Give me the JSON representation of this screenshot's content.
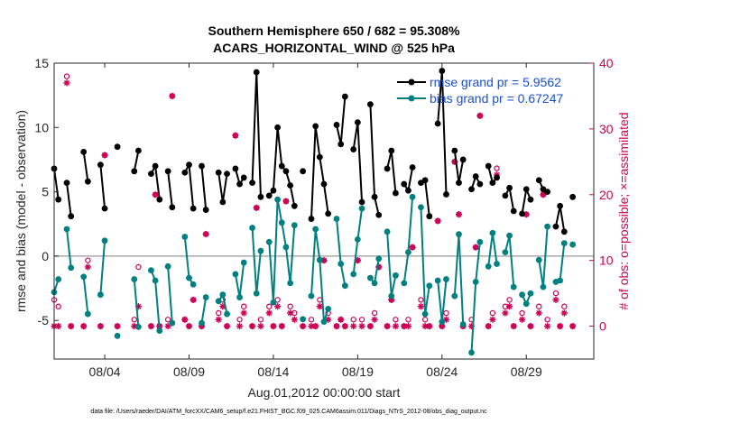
{
  "chart_data": {
    "type": "line",
    "title": "Southern Hemisphere 650 / 682 = 95.308%",
    "subtitle": "ACARS_HORIZONTAL_WIND @ 525 hPa",
    "xlabel": "Aug.01,2012 00:00:00 start",
    "ylabel_left": "rmse and bias (model - observation)",
    "ylabel_right": "# of obs: o=possible; ×=assimilated",
    "xlim": [
      1.0,
      33.0
    ],
    "ylim_left": [
      -8,
      15
    ],
    "ylim_right": [
      -5,
      40
    ],
    "x_ticks": [
      {
        "x": 4,
        "label": "08/04"
      },
      {
        "x": 9,
        "label": "08/09"
      },
      {
        "x": 14,
        "label": "08/14"
      },
      {
        "x": 19,
        "label": "08/19"
      },
      {
        "x": 24,
        "label": "08/24"
      },
      {
        "x": 29,
        "label": "08/29"
      }
    ],
    "yticks_left": [
      -5,
      0,
      5,
      10,
      15
    ],
    "yticks_right": [
      0,
      10,
      20,
      30,
      40
    ],
    "grid": false,
    "legend_position": "top-right",
    "colors": {
      "rmse": "#000000",
      "bias": "#008080",
      "obs": "#cc0055",
      "zero": "#aaaaaa"
    },
    "series": [
      {
        "name": "rmse grand pr = 5.9562",
        "axis": "left",
        "x": [
          1.0,
          1.25,
          1.75,
          2.0,
          2.75,
          3.0,
          3.75,
          4.0,
          4.75,
          5.75,
          6.0,
          6.75,
          7.0,
          7.25,
          7.75,
          8.0,
          8.75,
          9.0,
          9.25,
          9.75,
          10.0,
          10.75,
          11.0,
          11.25,
          11.75,
          12.0,
          12.25,
          12.75,
          13.0,
          13.25,
          13.75,
          14.0,
          14.25,
          14.5,
          14.75,
          15.0,
          15.25,
          15.75,
          16.25,
          16.5,
          16.75,
          17.0,
          17.25,
          17.75,
          18.0,
          18.25,
          18.75,
          19.0,
          19.25,
          19.75,
          20.0,
          20.25,
          20.75,
          21.0,
          21.25,
          21.75,
          22.0,
          22.25,
          22.75,
          23.0,
          23.25,
          23.75,
          24.0,
          24.25,
          24.75,
          25.0,
          25.25,
          25.75,
          26.0,
          26.25,
          26.75,
          27.0,
          27.25,
          27.75,
          28.0,
          28.25,
          28.75,
          29.0,
          29.25,
          29.75,
          30.0,
          30.25,
          30.75,
          31.0,
          31.25,
          31.75
        ],
        "y": [
          6.8,
          4.4,
          5.7,
          3.1,
          8.1,
          5.8,
          7.1,
          3.7,
          8.5,
          6.6,
          8.2,
          6.4,
          7.0,
          4.4,
          6.6,
          3.8,
          6.5,
          7.1,
          3.7,
          7.0,
          3.6,
          6.5,
          4.2,
          6.4,
          6.8,
          5.6,
          6.1,
          5.7,
          14.3,
          4.6,
          4.7,
          5.1,
          10.0,
          7.0,
          6.6,
          5.5,
          3.9,
          6.6,
          2.9,
          10.1,
          7.7,
          5.6,
          3.3,
          10.2,
          8.7,
          12.4,
          8.3,
          10.4,
          4.2,
          11.8,
          4.6,
          3.2,
          6.8,
          8.2,
          4.9,
          5.6,
          5.1,
          6.9,
          5.7,
          5.9,
          3.1,
          10.3,
          14.4,
          4.8,
          8.2,
          5.7,
          7.5,
          5.2,
          6.2,
          5.6,
          7.0,
          5.7,
          6.1,
          4.7,
          5.3,
          3.5,
          3.3,
          5.2,
          4.4,
          5.9,
          5.2,
          5.0,
          2.3,
          3.9,
          1.9,
          4.6
        ]
      },
      {
        "name": "bias grand pr = 0.67247",
        "axis": "left",
        "x": [
          1.0,
          1.25,
          1.75,
          2.0,
          2.75,
          3.0,
          3.75,
          4.0,
          4.75,
          5.75,
          6.0,
          6.75,
          7.0,
          7.25,
          7.75,
          8.0,
          8.75,
          9.0,
          9.25,
          9.75,
          10.0,
          10.75,
          11.0,
          11.25,
          11.75,
          12.0,
          12.25,
          12.75,
          13.0,
          13.25,
          13.75,
          14.0,
          14.25,
          14.5,
          14.75,
          15.0,
          15.25,
          15.75,
          16.25,
          16.5,
          16.75,
          17.0,
          17.25,
          17.75,
          18.0,
          18.25,
          18.75,
          19.0,
          19.25,
          19.75,
          20.0,
          20.25,
          20.75,
          21.0,
          21.25,
          21.75,
          22.0,
          22.25,
          22.75,
          23.0,
          23.25,
          23.75,
          24.0,
          24.25,
          24.75,
          25.0,
          25.25,
          25.75,
          26.0,
          26.25,
          26.75,
          27.0,
          27.25,
          27.75,
          28.0,
          28.25,
          28.75,
          29.0,
          29.25,
          29.75,
          30.0,
          30.25,
          30.75,
          31.0,
          31.25,
          31.75
        ],
        "y": [
          -2.8,
          -1.8,
          2.1,
          -0.9,
          -1.6,
          -4.5,
          -3.0,
          1.2,
          -6.2,
          -1.8,
          -5.5,
          -1.1,
          -1.9,
          -5.8,
          -0.8,
          -5.2,
          1.5,
          -1.7,
          -2.2,
          -5.2,
          -3.2,
          -3.5,
          -3.0,
          -4.5,
          -1.4,
          -3.2,
          -0.5,
          2.2,
          -2.9,
          0.4,
          1.1,
          -3.6,
          4.4,
          2.6,
          0.7,
          -2.1,
          2.4,
          -4.9,
          -3.1,
          2.1,
          -0.3,
          -5.1,
          -4.1,
          2.9,
          -0.6,
          -2.3,
          -1.4,
          1.3,
          3.7,
          -1.7,
          -2.1,
          -0.2,
          1.9,
          -3.1,
          -1.5,
          -2.1,
          0.3,
          4.6,
          3.8,
          -4.5,
          -2.3,
          -1.9,
          -5.1,
          -1.8,
          -3.1,
          1.7,
          -5.3,
          -7.5,
          -2.0,
          1.1,
          -0.8,
          1.8,
          -0.6,
          0.3,
          1.6,
          -2.4,
          -3.0,
          -3.7,
          -2.9,
          -0.3,
          -2.4,
          2.3,
          -2.0,
          -1.9,
          1.0,
          0.9
        ]
      },
      {
        "name": "possible",
        "axis": "right",
        "x": [
          1.0,
          1.25,
          1.75,
          2.0,
          2.75,
          3.0,
          3.75,
          4.0,
          4.75,
          5.75,
          6.0,
          6.75,
          7.0,
          7.25,
          7.75,
          8.0,
          8.75,
          9.0,
          9.25,
          9.75,
          10.0,
          10.75,
          11.0,
          11.25,
          11.75,
          12.0,
          12.25,
          12.75,
          13.0,
          13.25,
          13.75,
          14.0,
          14.25,
          14.5,
          14.75,
          15.0,
          15.25,
          15.75,
          16.25,
          16.5,
          16.75,
          17.0,
          17.25,
          17.75,
          18.0,
          18.25,
          18.75,
          19.0,
          19.25,
          19.75,
          20.0,
          20.25,
          20.75,
          21.0,
          21.25,
          21.75,
          22.0,
          22.25,
          22.75,
          23.0,
          23.25,
          23.75,
          24.0,
          24.25,
          24.75,
          25.0,
          25.25,
          25.75,
          26.0,
          26.25,
          26.75,
          27.0,
          27.25,
          27.75,
          28.0,
          28.25,
          28.75,
          29.0,
          29.25,
          29.75,
          30.0,
          30.25,
          30.75,
          31.0,
          31.25,
          31.75
        ],
        "y": [
          4,
          3,
          38,
          0,
          0,
          10,
          0,
          26,
          0,
          1,
          9,
          0,
          20,
          0,
          1,
          35,
          1,
          0,
          4,
          0,
          14,
          2,
          4,
          0,
          29,
          1,
          3,
          0,
          18,
          1,
          3,
          0,
          4,
          0,
          19,
          3,
          2,
          0,
          1,
          0,
          4,
          10,
          2,
          0,
          1,
          0,
          1,
          10,
          1,
          0,
          2,
          9,
          0,
          4,
          1,
          0,
          1,
          12,
          4,
          1,
          0,
          16,
          0,
          2,
          25,
          17,
          0,
          1,
          12,
          32,
          0,
          2,
          24,
          3,
          4,
          0,
          2,
          17,
          0,
          3,
          20,
          1,
          5,
          0,
          3,
          0
        ]
      },
      {
        "name": "assimilated",
        "axis": "right",
        "x": [
          1.0,
          1.25,
          1.75,
          2.0,
          2.75,
          3.0,
          3.75,
          4.0,
          4.75,
          5.75,
          6.0,
          6.75,
          7.0,
          7.25,
          7.75,
          8.0,
          8.75,
          9.0,
          9.25,
          9.75,
          10.0,
          10.75,
          11.0,
          11.25,
          11.75,
          12.0,
          12.25,
          12.75,
          13.0,
          13.25,
          13.75,
          14.0,
          14.25,
          14.5,
          14.75,
          15.0,
          15.25,
          15.75,
          16.25,
          16.5,
          16.75,
          17.0,
          17.25,
          17.75,
          18.0,
          18.25,
          18.75,
          19.0,
          19.25,
          19.75,
          20.0,
          20.25,
          20.75,
          21.0,
          21.25,
          21.75,
          22.0,
          22.25,
          22.75,
          23.0,
          23.25,
          23.75,
          24.0,
          24.25,
          24.75,
          25.0,
          25.25,
          25.75,
          26.0,
          26.25,
          26.75,
          27.0,
          27.25,
          27.75,
          28.0,
          28.25,
          28.75,
          29.0,
          29.25,
          29.75,
          30.0,
          30.25,
          30.75,
          31.0,
          31.25,
          31.75
        ],
        "y": [
          0,
          0,
          37,
          0,
          0,
          9,
          0,
          26,
          0,
          0,
          3,
          0,
          20,
          0,
          0,
          35,
          1,
          0,
          4,
          0,
          14,
          1,
          3,
          0,
          29,
          0,
          2,
          0,
          18,
          0,
          2,
          0,
          3,
          0,
          19,
          2,
          1,
          0,
          0,
          0,
          3,
          10,
          1,
          0,
          1,
          0,
          0,
          10,
          0,
          0,
          1,
          9,
          0,
          4,
          0,
          0,
          0,
          12,
          3,
          0,
          0,
          16,
          0,
          1,
          25,
          17,
          0,
          0,
          12,
          32,
          0,
          1,
          23,
          2,
          3,
          0,
          1,
          17,
          0,
          2,
          20,
          0,
          4,
          0,
          2,
          0
        ]
      }
    ]
  },
  "footer": "data file: /Users/raeder/DAI/ATM_forcXX/CAM6_setup/f.e21.FHIST_BGC.f09_025.CAM6assim.011/Diags_NTrS_2012-08/obs_diag_output.nc"
}
